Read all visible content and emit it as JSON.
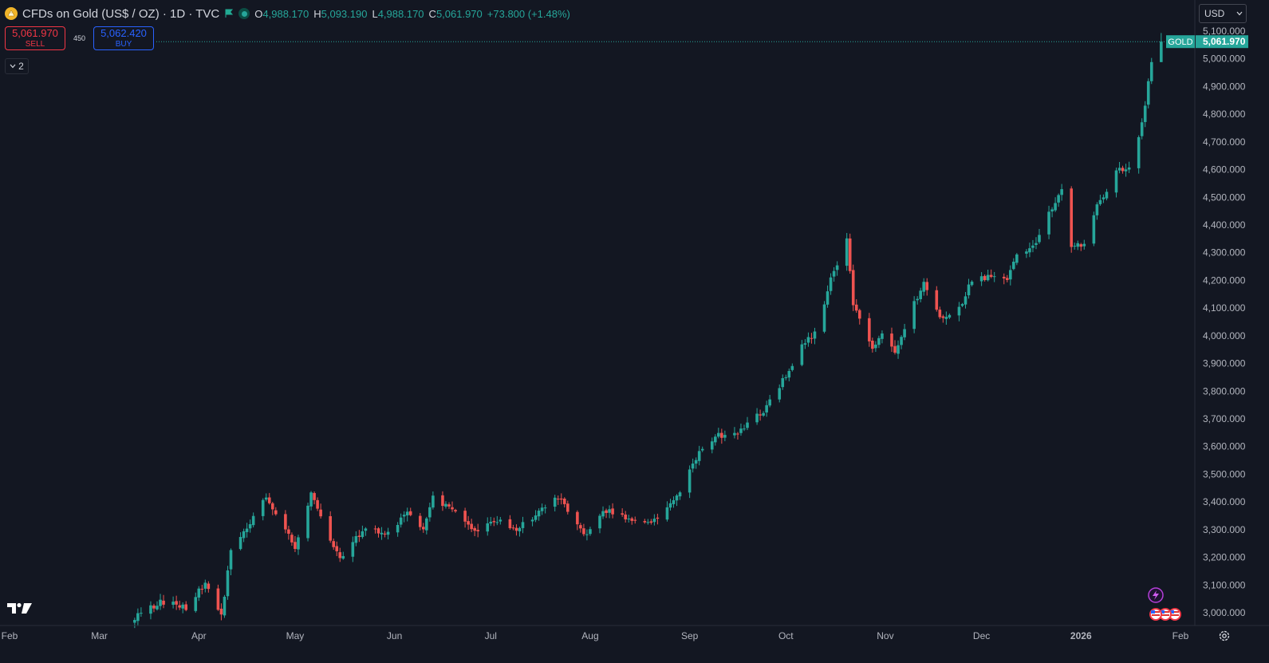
{
  "header": {
    "symbol_title": "CFDs on Gold (US$ / OZ) · 1D · TVC",
    "ohlc": [
      {
        "key": "O",
        "value": "4,988.170"
      },
      {
        "key": "H",
        "value": "5,093.190"
      },
      {
        "key": "L",
        "value": "4,988.170"
      },
      {
        "key": "C",
        "value": "5,061.970"
      }
    ],
    "change": "+73.800 (+1.48%)"
  },
  "trade": {
    "sell_price": "5,061.970",
    "sell_label": "SELL",
    "buy_price": "5,062.420",
    "buy_label": "BUY",
    "spread": "450"
  },
  "indicators_toggle": "2",
  "currency": "USD",
  "colors": {
    "up": "#26a69a",
    "down": "#ef5350",
    "background": "#131722",
    "grid": "#1c2030"
  },
  "icons": [
    "gold-logo-icon",
    "flag-icon",
    "live-status-icon",
    "chevron-down-icon",
    "tradingview-logo-icon",
    "lightning-icon",
    "us-flag-icon",
    "settings-icon"
  ],
  "chart_data": {
    "type": "candlestick",
    "series_name": "GOLD",
    "last_price_label": "5,061.970",
    "ylim": [
      2950,
      5130
    ],
    "y_ticks": [
      3000,
      3100,
      3200,
      3300,
      3400,
      3500,
      3600,
      3700,
      3800,
      3900,
      4000,
      4100,
      4200,
      4300,
      4400,
      4500,
      4600,
      4700,
      4800,
      4900,
      5000,
      5100
    ],
    "y_tick_labels": [
      "3,000.000",
      "3,100.000",
      "3,200.000",
      "3,300.000",
      "3,400.000",
      "3,500.000",
      "3,600.000",
      "3,700.000",
      "3,800.000",
      "3,900.000",
      "4,000.000",
      "4,100.000",
      "4,200.000",
      "4,300.000",
      "4,400.000",
      "4,500.000",
      "4,600.000",
      "4,700.000",
      "4,800.000",
      "4,900.000",
      "5,000.000",
      "5,100.000"
    ],
    "x_range": [
      "2025-02-01",
      "2026-02-03"
    ],
    "x_ticks": [
      {
        "date": "2025-02-01",
        "label": "Feb"
      },
      {
        "date": "2025-03-01",
        "label": "Mar"
      },
      {
        "date": "2025-04-01",
        "label": "Apr"
      },
      {
        "date": "2025-05-01",
        "label": "May"
      },
      {
        "date": "2025-06-01",
        "label": "Jun"
      },
      {
        "date": "2025-07-01",
        "label": "Jul"
      },
      {
        "date": "2025-08-01",
        "label": "Aug"
      },
      {
        "date": "2025-09-01",
        "label": "Sep"
      },
      {
        "date": "2025-10-01",
        "label": "Oct"
      },
      {
        "date": "2025-11-01",
        "label": "Nov"
      },
      {
        "date": "2025-12-01",
        "label": "Dec"
      },
      {
        "date": "2026-01-01",
        "label": "2026"
      },
      {
        "date": "2026-02-01",
        "label": "Feb"
      }
    ],
    "close_anchors": [
      {
        "date": "2025-03-12",
        "close": 2985
      },
      {
        "date": "2025-03-20",
        "close": 3040
      },
      {
        "date": "2025-03-28",
        "close": 3020
      },
      {
        "date": "2025-04-03",
        "close": 3110
      },
      {
        "date": "2025-04-08",
        "close": 2985
      },
      {
        "date": "2025-04-11",
        "close": 3230
      },
      {
        "date": "2025-04-17",
        "close": 3330
      },
      {
        "date": "2025-04-22",
        "close": 3420
      },
      {
        "date": "2025-04-28",
        "close": 3310
      },
      {
        "date": "2025-05-01",
        "close": 3230
      },
      {
        "date": "2025-05-06",
        "close": 3430
      },
      {
        "date": "2025-05-15",
        "close": 3190
      },
      {
        "date": "2025-05-22",
        "close": 3300
      },
      {
        "date": "2025-05-30",
        "close": 3290
      },
      {
        "date": "2025-06-05",
        "close": 3360
      },
      {
        "date": "2025-06-10",
        "close": 3310
      },
      {
        "date": "2025-06-13",
        "close": 3420
      },
      {
        "date": "2025-06-20",
        "close": 3360
      },
      {
        "date": "2025-06-26",
        "close": 3290
      },
      {
        "date": "2025-07-03",
        "close": 3330
      },
      {
        "date": "2025-07-09",
        "close": 3300
      },
      {
        "date": "2025-07-15",
        "close": 3350
      },
      {
        "date": "2025-07-22",
        "close": 3420
      },
      {
        "date": "2025-07-30",
        "close": 3280
      },
      {
        "date": "2025-08-06",
        "close": 3370
      },
      {
        "date": "2025-08-14",
        "close": 3340
      },
      {
        "date": "2025-08-21",
        "close": 3330
      },
      {
        "date": "2025-08-29",
        "close": 3440
      },
      {
        "date": "2025-09-03",
        "close": 3560
      },
      {
        "date": "2025-09-09",
        "close": 3640
      },
      {
        "date": "2025-09-15",
        "close": 3640
      },
      {
        "date": "2025-09-19",
        "close": 3680
      },
      {
        "date": "2025-09-25",
        "close": 3740
      },
      {
        "date": "2025-10-01",
        "close": 3860
      },
      {
        "date": "2025-10-07",
        "close": 3980
      },
      {
        "date": "2025-10-10",
        "close": 4010
      },
      {
        "date": "2025-10-15",
        "close": 4200
      },
      {
        "date": "2025-10-20",
        "close": 4360
      },
      {
        "date": "2025-10-22",
        "close": 4110
      },
      {
        "date": "2025-10-28",
        "close": 3950
      },
      {
        "date": "2025-10-31",
        "close": 4000
      },
      {
        "date": "2025-11-04",
        "close": 3940
      },
      {
        "date": "2025-11-10",
        "close": 4120
      },
      {
        "date": "2025-11-13",
        "close": 4190
      },
      {
        "date": "2025-11-18",
        "close": 4060
      },
      {
        "date": "2025-11-24",
        "close": 4100
      },
      {
        "date": "2025-11-28",
        "close": 4200
      },
      {
        "date": "2025-12-03",
        "close": 4210
      },
      {
        "date": "2025-12-09",
        "close": 4200
      },
      {
        "date": "2025-12-12",
        "close": 4300
      },
      {
        "date": "2025-12-18",
        "close": 4330
      },
      {
        "date": "2025-12-22",
        "close": 4440
      },
      {
        "date": "2025-12-26",
        "close": 4530
      },
      {
        "date": "2025-12-29",
        "close": 4330
      },
      {
        "date": "2026-01-02",
        "close": 4330
      },
      {
        "date": "2026-01-06",
        "close": 4480
      },
      {
        "date": "2026-01-09",
        "close": 4510
      },
      {
        "date": "2026-01-12",
        "close": 4600
      },
      {
        "date": "2026-01-16",
        "close": 4600
      },
      {
        "date": "2026-01-20",
        "close": 4760
      },
      {
        "date": "2026-01-22",
        "close": 4920
      },
      {
        "date": "2026-01-23",
        "close": 4988.17
      }
    ],
    "last_candle": {
      "date": "2026-01-26",
      "open": 4988.17,
      "high": 5093.19,
      "low": 4988.17,
      "close": 5061.97
    }
  }
}
